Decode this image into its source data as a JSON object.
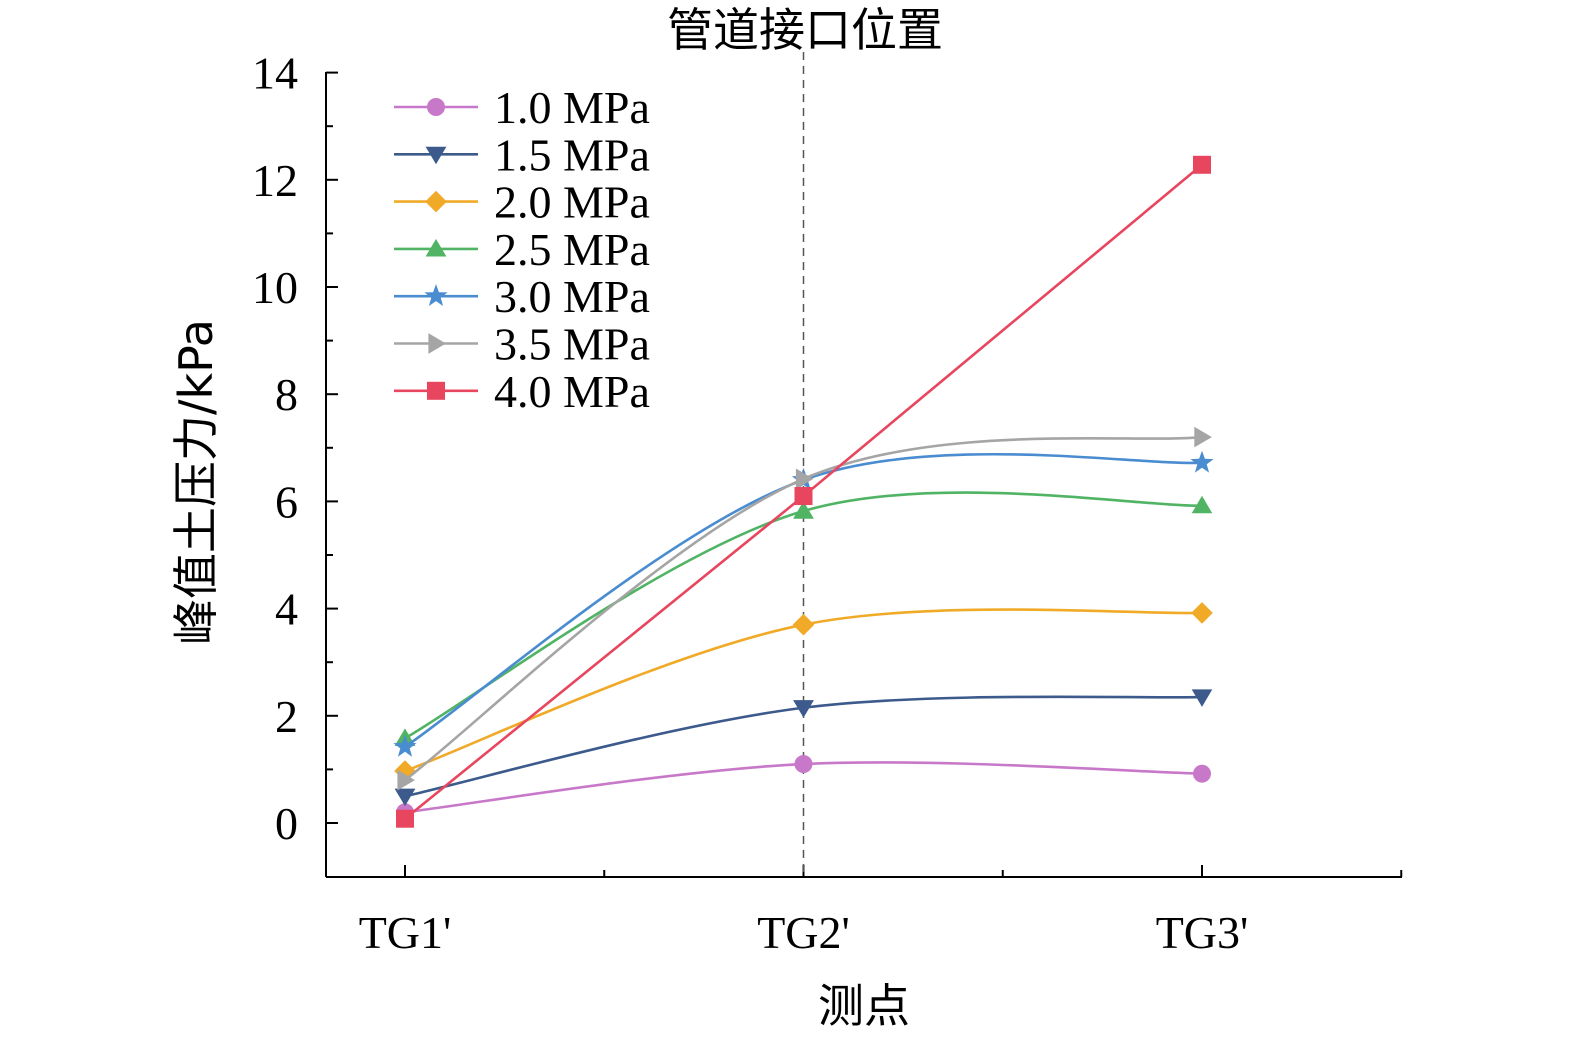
{
  "chart_data": {
    "type": "line",
    "title": "",
    "annotation": "管道接口位置",
    "xlabel": "测点",
    "ylabel": "峰值土压力/kPa",
    "categories": [
      "TG1'",
      "TG2'",
      "TG3'"
    ],
    "ylim": [
      -1,
      14
    ],
    "yticks": [
      0,
      2,
      4,
      6,
      8,
      10,
      12,
      14
    ],
    "smooth": true,
    "legend_position": "top-left",
    "series": [
      {
        "name": "1.0 MPa",
        "values": [
          0.2,
          1.1,
          0.92
        ],
        "color": "#c878c8",
        "marker": "circle"
      },
      {
        "name": "1.5 MPa",
        "values": [
          0.5,
          2.15,
          2.35
        ],
        "color": "#3c5a8c",
        "marker": "triangle-down"
      },
      {
        "name": "2.0 MPa",
        "values": [
          0.97,
          3.7,
          3.92
        ],
        "color": "#f0aa28",
        "marker": "diamond"
      },
      {
        "name": "2.5 MPa",
        "values": [
          1.58,
          5.82,
          5.92
        ],
        "color": "#50b464",
        "marker": "triangle-up"
      },
      {
        "name": "3.0 MPa",
        "values": [
          1.42,
          6.4,
          6.72
        ],
        "color": "#4a8cd0",
        "marker": "star"
      },
      {
        "name": "3.5 MPa",
        "values": [
          0.8,
          6.42,
          7.2
        ],
        "color": "#a5a5a5",
        "marker": "triangle-right"
      },
      {
        "name": "4.0 MPa",
        "values": [
          0.08,
          6.1,
          12.28
        ],
        "color": "#e8465f",
        "marker": "square",
        "smooth": false
      }
    ]
  }
}
